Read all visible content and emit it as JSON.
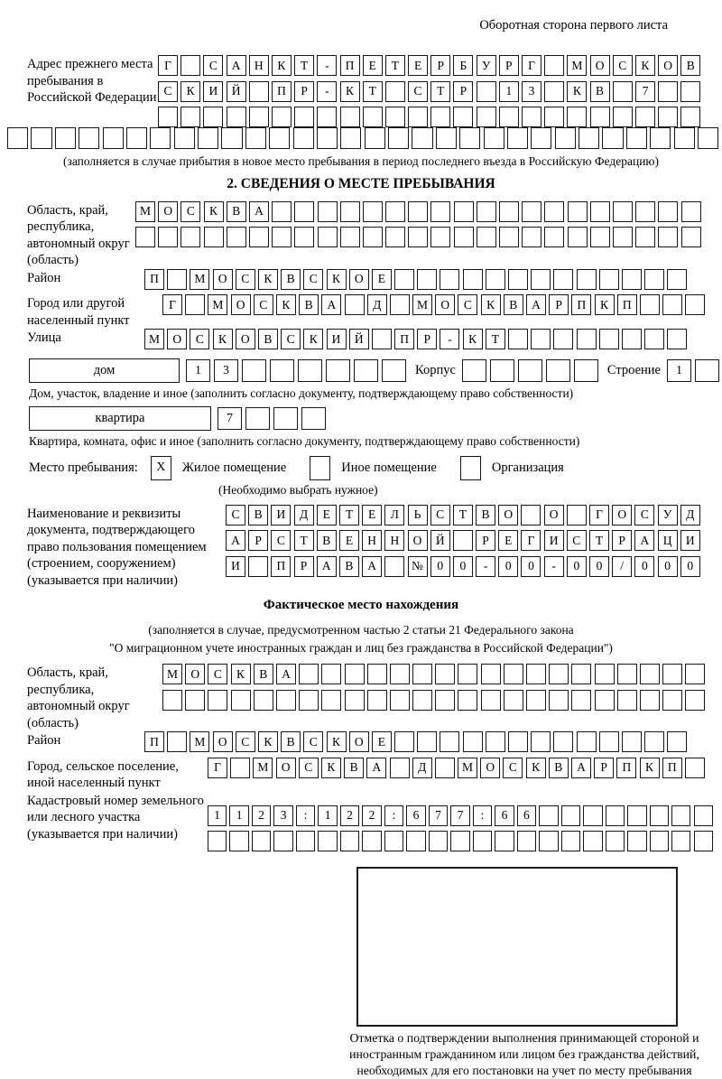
{
  "ink": "#161616",
  "header_note": "Оборотная сторона первого листа",
  "prev_address": {
    "label": "Адрес прежнего места пребывания в Российской Федерации",
    "rows": [
      {
        "cells": "Г САНКТ-ПЕТЕРБУРГ МОСКОВ",
        "count": 24
      },
      {
        "cells": "СКИЙ ПР-КТ СТР 13 КВ 7",
        "count": 24
      },
      {
        "cells": "",
        "count": 24
      },
      {
        "cells": "",
        "count": 30
      }
    ],
    "note": "(заполняется в случае прибытия в новое место пребывания в период последнего въезда в Российскую Федерацию)"
  },
  "section_title": "2. СВЕДЕНИЯ О МЕСТЕ ПРЕБЫВАНИЯ",
  "region": {
    "label": "Область, край, республика, автономный округ (область)",
    "rows": [
      {
        "cells": "МОСКВА",
        "count": 25
      },
      {
        "cells": "",
        "count": 25
      }
    ]
  },
  "district": {
    "label": "Район",
    "row": {
      "cells": "П МОСКВСКОЕ",
      "count": 24
    }
  },
  "city": {
    "label": "Город или другой населенный пункт",
    "row": {
      "cells": "Г МОСКВА Д МОСКВАРПКП",
      "count": 24
    }
  },
  "street": {
    "label": "Улица",
    "row": {
      "cells": "МОСКОВСКИЙ ПР-КТ",
      "count": 24
    }
  },
  "house": {
    "box_label": "дом",
    "row": {
      "cells": "13",
      "count": 8
    },
    "korpus_label": "Корпус",
    "korpus_row": {
      "cells": "",
      "count": 5
    },
    "stroenie_label": "Строение",
    "stroenie_row": {
      "cells": "1",
      "count": 4
    },
    "caption": "Дом, участок, владение и иное (заполнить согласно документу, подтверждающему право собственности)"
  },
  "apartment": {
    "box_label": "квартира",
    "row": {
      "cells": "7",
      "count": 4
    },
    "caption": "Квартира, комната, офис и иное (заполнить согласно документу, подтверждающему право собственности)"
  },
  "place_type": {
    "label": "Место пребывания:",
    "options": [
      {
        "mark": "X",
        "label": "Жилое помещение"
      },
      {
        "mark": "",
        "label": "Иное помещение"
      },
      {
        "mark": "",
        "label": "Организация"
      }
    ],
    "note": "(Необходимо выбрать нужное)"
  },
  "document": {
    "label": "Наименование и реквизиты документа, подтверждающего право пользования помещением (строением, сооружением) (указывается при наличии)",
    "rows": [
      {
        "cells": "СВИДЕТЕЛЬСТВО О ГОСУД",
        "count": 21
      },
      {
        "cells": "АРСТВЕННОЙ РЕГИСТРАЦИ",
        "count": 21
      },
      {
        "cells": "И ПРАВА №00-00-00/000",
        "count": 21
      }
    ]
  },
  "fact": {
    "title": "Фактическое место нахождения",
    "note1": "(заполняется в случае, предусмотренном частью 2 статьи 21 Федерального закона",
    "note2": "\"О миграционном учете иностранных граждан и лиц без гражданства в Российской Федерации\")"
  },
  "fact_region": {
    "label": "Область, край, республика, автономный округ (область)",
    "rows": [
      {
        "cells": "МОСКВА",
        "count": 24
      },
      {
        "cells": "",
        "count": 24
      }
    ]
  },
  "fact_district": {
    "label": "Район",
    "row": {
      "cells": "П МОСКВСКОЕ",
      "count": 24
    }
  },
  "fact_city": {
    "label": "Город, сельское поселение, иной населенный пункт",
    "row": {
      "cells": "Г МОСКВА Д МОСКВАРПКП",
      "count": 22
    }
  },
  "cadastre": {
    "label": "Кадастровый номер земельного или лесного участка (указывается при наличии)",
    "rows": [
      {
        "cells": "1123:122:677:66",
        "count": 23
      },
      {
        "cells": "",
        "count": 23
      }
    ]
  },
  "stamp": {
    "caption": "Отметка о подтверждении выполнения принимающей стороной и иностранным гражданином или лицом без гражданства действий, необходимых для его постановки на учет по месту пребывания"
  }
}
